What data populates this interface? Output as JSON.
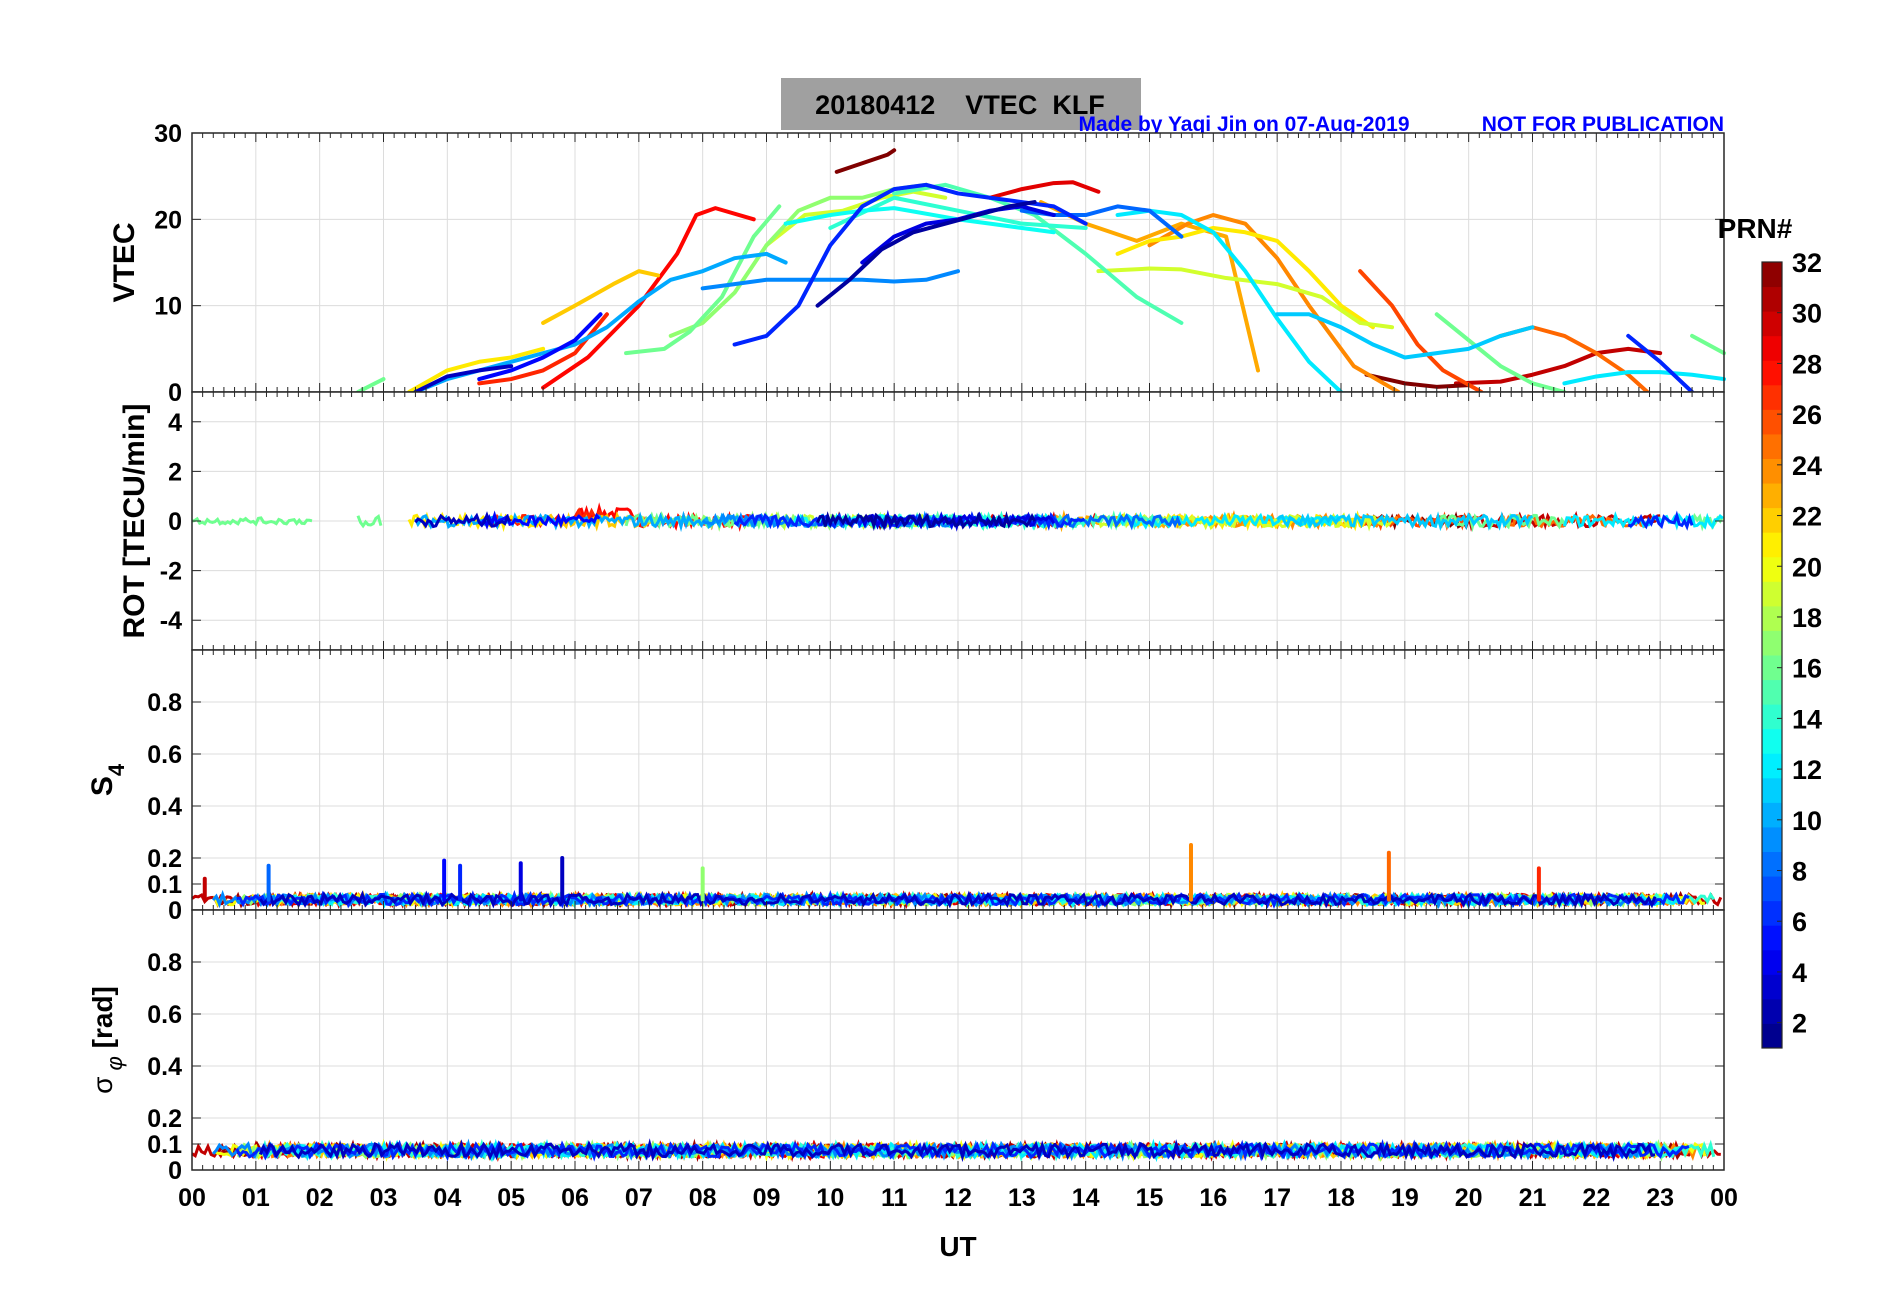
{
  "title": {
    "main": "20180412    VTEC  KLF",
    "credit": "Made by Yaqi Jin on 07-Aug-2019",
    "notice": "NOT FOR PUBLICATION"
  },
  "colorbar": {
    "label": "PRN#",
    "ticks": [
      "2",
      "4",
      "6",
      "8",
      "10",
      "12",
      "14",
      "16",
      "18",
      "20",
      "22",
      "24",
      "26",
      "28",
      "30",
      "32"
    ],
    "colormap": "jet",
    "range": [
      1,
      32
    ]
  },
  "colors": {
    "title_box": "#a0a0a0",
    "annotation": "#0000ff",
    "grid": "#dcdcdc"
  },
  "chart_data": [
    {
      "type": "line",
      "panel": "VTEC",
      "ylabel": "VTEC",
      "ylim": [
        0,
        30
      ],
      "yticks": [
        0,
        10,
        20,
        30
      ],
      "grid": true,
      "series": [
        {
          "prn": 32,
          "x": [
            9.1,
            10.0,
            10.1,
            10.5,
            10.9,
            11.0
          ],
          "y": [
            null,
            null,
            25.5,
            26.5,
            27.5,
            28.0
          ]
        },
        {
          "prn": 29,
          "x": [
            12.5,
            13.0,
            13.5,
            13.8,
            14.2
          ],
          "y": [
            22.5,
            23.5,
            24.2,
            24.3,
            23.2
          ]
        },
        {
          "prn": 28,
          "x": [
            5.5,
            6.2,
            7.0,
            7.6,
            7.9,
            8.2,
            8.8
          ],
          "y": [
            0.5,
            4.0,
            10.0,
            16.0,
            20.5,
            21.3,
            20.0
          ]
        },
        {
          "prn": 27,
          "x": [
            4.5,
            5.0,
            5.5,
            6.0,
            6.5
          ],
          "y": [
            1.0,
            1.5,
            2.5,
            4.5,
            9.0
          ]
        },
        {
          "prn": 30,
          "x": [
            19.8,
            20.5,
            21.0,
            21.5,
            22.0,
            22.5,
            23.0
          ],
          "y": [
            1.0,
            1.2,
            2.0,
            3.0,
            4.5,
            5.0,
            4.5
          ]
        },
        {
          "prn": 32,
          "x": [
            18.4,
            19.0,
            19.5,
            20.0
          ],
          "y": [
            2.0,
            1.0,
            0.6,
            0.8
          ]
        },
        {
          "prn": 26,
          "x": [
            18.3,
            18.8,
            19.2,
            19.6,
            20.2
          ],
          "y": [
            14.0,
            10.0,
            5.5,
            2.5,
            0.0
          ]
        },
        {
          "prn": 25,
          "x": [
            20.5,
            21.0,
            21.5,
            22.0,
            22.5,
            22.8
          ],
          "y": [
            6.5,
            7.5,
            6.5,
            4.5,
            2.0,
            0.0
          ]
        },
        {
          "prn": 23,
          "x": [
            13.3,
            14.0,
            14.8,
            15.5,
            16.2,
            16.7
          ],
          "y": [
            22.0,
            19.5,
            17.5,
            19.5,
            18.0,
            2.5
          ]
        },
        {
          "prn": 24,
          "x": [
            15.0,
            15.6,
            16.0,
            16.5,
            17.0,
            17.5,
            18.2,
            18.9
          ],
          "y": [
            17.0,
            19.5,
            20.5,
            19.5,
            15.5,
            10.0,
            3.0,
            0.0
          ]
        },
        {
          "prn": 22,
          "x": [
            5.5,
            6.0,
            6.6,
            7.0,
            7.3
          ],
          "y": [
            8.0,
            10.0,
            12.5,
            14.0,
            13.5
          ]
        },
        {
          "prn": 21,
          "x": [
            3.4,
            4.0,
            4.5,
            5.0,
            5.5
          ],
          "y": [
            0.0,
            2.5,
            3.5,
            4.0,
            5.0
          ]
        },
        {
          "prn": 21,
          "x": [
            14.5,
            15.0,
            15.5,
            16.0,
            16.5,
            17.0,
            17.5,
            18.0,
            18.5
          ],
          "y": [
            16.0,
            17.5,
            18.0,
            19.0,
            18.5,
            17.5,
            14.0,
            10.0,
            7.5
          ]
        },
        {
          "prn": 19,
          "x": [
            14.2,
            15.0,
            15.5,
            16.2,
            17.0,
            17.7,
            18.3,
            18.8
          ],
          "y": [
            14.0,
            14.3,
            14.2,
            13.2,
            12.5,
            11.0,
            8.0,
            7.5
          ]
        },
        {
          "prn": 19,
          "x": [
            9.0,
            9.6,
            10.2,
            10.8,
            11.3,
            11.8
          ],
          "y": [
            17.0,
            20.5,
            21.0,
            22.5,
            23.2,
            22.5
          ]
        },
        {
          "prn": 17,
          "x": [
            7.5,
            8.0,
            8.5,
            9.0,
            9.5,
            10.0,
            10.5,
            11.0,
            11.5
          ],
          "y": [
            6.5,
            8.0,
            11.5,
            17.0,
            21.0,
            22.5,
            22.5,
            23.5,
            24.0
          ]
        },
        {
          "prn": 16,
          "x": [
            6.8,
            7.4,
            7.8,
            8.3,
            8.8,
            9.2
          ],
          "y": [
            4.5,
            5.0,
            7.0,
            11.0,
            18.0,
            21.5
          ]
        },
        {
          "prn": 15,
          "x": [
            11.0,
            11.8,
            12.5,
            13.2,
            14.0,
            14.8,
            15.5
          ],
          "y": [
            23.0,
            24.0,
            22.5,
            20.5,
            16.0,
            11.0,
            8.0
          ]
        },
        {
          "prn": 16,
          "x": [
            19.5,
            20.0,
            20.5,
            21.0,
            21.5
          ],
          "y": [
            9.0,
            6.0,
            3.0,
            1.0,
            0.0
          ]
        },
        {
          "prn": 16,
          "x": [
            23.5,
            24.0
          ],
          "y": [
            6.5,
            4.5
          ]
        },
        {
          "prn": 14,
          "x": [
            10.0,
            11.0,
            12.0,
            13.0,
            14.0
          ],
          "y": [
            19.0,
            22.5,
            21.0,
            19.5,
            19.0
          ]
        },
        {
          "prn": 13,
          "x": [
            9.3,
            10.0,
            10.5,
            11.0,
            12.0,
            12.5,
            13.5
          ],
          "y": [
            19.5,
            20.5,
            21.0,
            21.3,
            20.0,
            19.5,
            18.5
          ]
        },
        {
          "prn": 12,
          "x": [
            14.5,
            15.0,
            15.5,
            16.0,
            16.5,
            17.0,
            17.5,
            18.0
          ],
          "y": [
            20.5,
            21.0,
            20.5,
            18.5,
            14.0,
            8.5,
            3.5,
            0.0
          ]
        },
        {
          "prn": 11,
          "x": [
            17.0,
            17.5,
            18.0,
            18.5,
            19.0,
            19.5,
            20.0,
            20.5,
            21.0
          ],
          "y": [
            9.0,
            9.0,
            7.5,
            5.5,
            4.0,
            4.5,
            5.0,
            6.5,
            7.5
          ]
        },
        {
          "prn": 12,
          "x": [
            21.5,
            22.0,
            22.5,
            23.0,
            23.5,
            24.0
          ],
          "y": [
            1.0,
            1.8,
            2.3,
            2.3,
            2.0,
            1.5
          ]
        },
        {
          "prn": 10,
          "x": [
            3.5,
            4.0,
            4.5,
            5.0,
            5.5,
            6.0,
            6.5,
            7.0,
            7.5,
            8.0,
            8.5,
            9.0,
            9.3
          ],
          "y": [
            0.0,
            1.5,
            2.5,
            3.5,
            4.5,
            5.5,
            7.5,
            10.5,
            13.0,
            14.0,
            15.5,
            16.0,
            15.0
          ]
        },
        {
          "prn": 9,
          "x": [
            8.0,
            8.5,
            9.0,
            9.5,
            10.0,
            10.5,
            11.0,
            11.5,
            12.0
          ],
          "y": [
            12.0,
            12.5,
            13.0,
            13.0,
            13.0,
            13.0,
            12.8,
            13.0,
            14.0
          ]
        },
        {
          "prn": 8,
          "x": [
            13.0,
            13.5,
            14.0,
            14.5,
            15.0,
            15.5
          ],
          "y": [
            21.0,
            20.5,
            20.5,
            21.5,
            21.0,
            18.0
          ]
        },
        {
          "prn": 6,
          "x": [
            8.5,
            9.0,
            9.5,
            10.0,
            10.5,
            11.0,
            11.5,
            12.0,
            12.5,
            13.0,
            13.5,
            14.0
          ],
          "y": [
            5.5,
            6.5,
            10.0,
            17.0,
            21.5,
            23.5,
            24.0,
            23.0,
            22.5,
            22.0,
            21.5,
            19.5
          ]
        },
        {
          "prn": 6,
          "x": [
            22.5,
            23.0,
            23.5
          ],
          "y": [
            6.5,
            3.5,
            0.0
          ]
        },
        {
          "prn": 5,
          "x": [
            4.5,
            5.0,
            5.5,
            6.0,
            6.4
          ],
          "y": [
            1.5,
            2.5,
            4.0,
            6.0,
            9.0
          ]
        },
        {
          "prn": 4,
          "x": [
            10.5,
            11.0,
            11.5,
            12.0,
            12.5,
            13.0,
            13.5
          ],
          "y": [
            15.0,
            18.0,
            19.5,
            20.0,
            21.0,
            21.5,
            20.5
          ]
        },
        {
          "prn": 2,
          "x": [
            9.8,
            10.3,
            10.8,
            11.3,
            11.8,
            12.3,
            12.8,
            13.2
          ],
          "y": [
            10.0,
            13.0,
            16.5,
            18.5,
            19.5,
            20.5,
            21.5,
            22.0
          ]
        },
        {
          "prn": 3,
          "x": [
            3.5,
            4.0,
            4.5,
            5.0
          ],
          "y": [
            0.0,
            1.8,
            2.5,
            3.0
          ]
        },
        {
          "prn": 16,
          "x": [
            2.6,
            3.0
          ],
          "y": [
            0.0,
            1.5
          ]
        }
      ]
    },
    {
      "type": "line",
      "panel": "ROT",
      "ylabel": "ROT [TECU/min]",
      "ylim": [
        -5.2,
        5.2
      ],
      "yticks": [
        -4,
        -2,
        0,
        2,
        4
      ],
      "grid": true,
      "note": "All series remain near 0 (roughly -0.5 to 0.5) throughout the day, from about 00 to 24 UT."
    },
    {
      "type": "line",
      "panel": "S4",
      "ylabel": "S4",
      "ylim": [
        0,
        1
      ],
      "yticks": [
        0,
        0.1,
        0.2,
        0.4,
        0.6,
        0.8
      ],
      "grid": true,
      "baseline_range": [
        0.02,
        0.06
      ],
      "spikes": [
        {
          "x": 0.2,
          "y": 0.12,
          "prn": 30
        },
        {
          "x": 1.2,
          "y": 0.17,
          "prn": 8
        },
        {
          "x": 3.95,
          "y": 0.19,
          "prn": 5
        },
        {
          "x": 4.2,
          "y": 0.17,
          "prn": 6
        },
        {
          "x": 5.15,
          "y": 0.18,
          "prn": 4
        },
        {
          "x": 5.8,
          "y": 0.2,
          "prn": 3
        },
        {
          "x": 8.0,
          "y": 0.16,
          "prn": 17
        },
        {
          "x": 15.65,
          "y": 0.25,
          "prn": 24
        },
        {
          "x": 18.75,
          "y": 0.22,
          "prn": 25
        },
        {
          "x": 21.1,
          "y": 0.16,
          "prn": 27
        }
      ]
    },
    {
      "type": "line",
      "panel": "sigma_phi",
      "ylabel": "σ φ [rad]",
      "xlabel": "UT",
      "xlim": [
        0,
        24
      ],
      "xticks": [
        "00",
        "01",
        "02",
        "03",
        "04",
        "05",
        "06",
        "07",
        "08",
        "09",
        "10",
        "11",
        "12",
        "13",
        "14",
        "15",
        "16",
        "17",
        "18",
        "19",
        "20",
        "21",
        "22",
        "23",
        "00"
      ],
      "ylim": [
        0,
        1
      ],
      "yticks": [
        0,
        0.1,
        0.2,
        0.4,
        0.6,
        0.8
      ],
      "grid": true,
      "baseline_range": [
        0.05,
        0.1
      ]
    }
  ]
}
